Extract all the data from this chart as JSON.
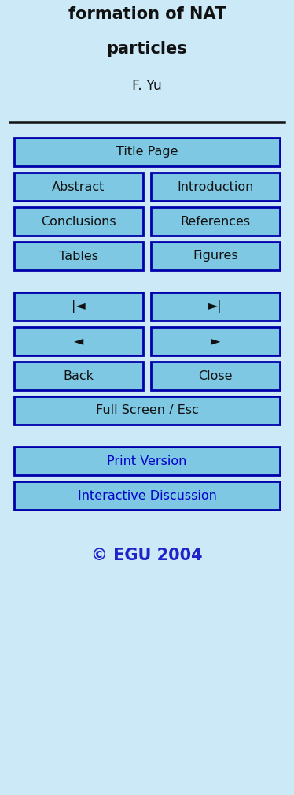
{
  "background_color": "#cce9f7",
  "title_line1": "formation of NAT",
  "title_line2": "particles",
  "author": "F. Yu",
  "button_bg": "#7ec8e3",
  "button_border": "#0000aa",
  "button_text_black": "#111111",
  "button_text_blue": "#0000cc",
  "copyright_color": "#2222cc",
  "copyright_text": "© EGU 2004",
  "fig_width": 3.74,
  "fig_height": 10.09,
  "dpi": 100
}
